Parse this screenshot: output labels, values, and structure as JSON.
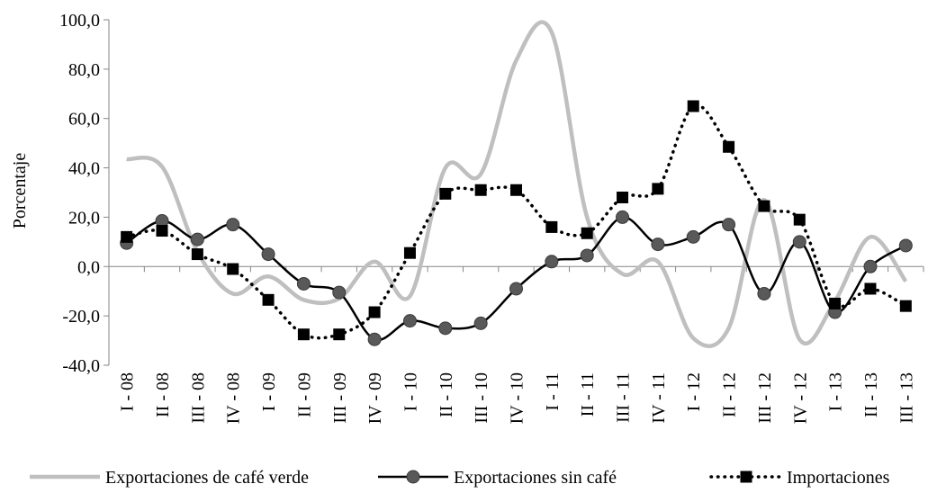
{
  "chart_data": {
    "type": "line",
    "y_label": "Porcentaje",
    "categories": [
      "I - 08",
      "II - 08",
      "III - 08",
      "IV - 08",
      "I - 09",
      "II - 09",
      "III - 09",
      "IV - 09",
      "I - 10",
      "II - 10",
      "III - 10",
      "IV - 10",
      "I - 11",
      "II - 11",
      "III - 11",
      "IV - 11",
      "I - 12",
      "II - 12",
      "III - 12",
      "IV - 12",
      "I - 13",
      "II - 13",
      "III - 13"
    ],
    "series": [
      {
        "name": "Exportaciones de café verde",
        "color": "#bfbfbf",
        "marker": null,
        "dash": "solid",
        "values": [
          43.5,
          40.5,
          6,
          -11,
          -4,
          -13.5,
          -13,
          2,
          -12,
          40,
          37.5,
          83.5,
          95,
          20,
          -3,
          2,
          -29,
          -25,
          27,
          -29.5,
          -14,
          12,
          -6
        ]
      },
      {
        "name": "Exportaciones sin café",
        "color": "#000000",
        "marker": "circle",
        "dash": "solid",
        "values": [
          9.5,
          18.5,
          11,
          17,
          5,
          -7,
          -10.5,
          -29.5,
          -22,
          -25,
          -23,
          -9,
          2,
          4.5,
          20,
          9,
          12,
          17,
          -11,
          10,
          -18.5,
          0,
          8.5
        ]
      },
      {
        "name": "Importaciones",
        "color": "#000000",
        "marker": "square",
        "dash": "dotted",
        "values": [
          12,
          14.5,
          5,
          -1,
          -13.5,
          -27.5,
          -27.5,
          -18.5,
          5.5,
          29.5,
          31,
          31,
          16,
          13.5,
          28,
          31.5,
          65,
          48.5,
          24.5,
          19,
          -15,
          -9,
          -16
        ]
      }
    ],
    "ylim": [
      -40,
      100
    ],
    "yticks": [
      {
        "value": -40,
        "label": "-40,0"
      },
      {
        "value": -20,
        "label": "-20,0"
      },
      {
        "value": 0,
        "label": "0,0"
      },
      {
        "value": 20,
        "label": "20,0"
      },
      {
        "value": 40,
        "label": "40,0"
      },
      {
        "value": 60,
        "label": "60,0"
      },
      {
        "value": 80,
        "label": "80,0"
      },
      {
        "value": 100,
        "label": "100,0"
      }
    ],
    "grid": false,
    "smooth": true,
    "legend": "bottom"
  }
}
